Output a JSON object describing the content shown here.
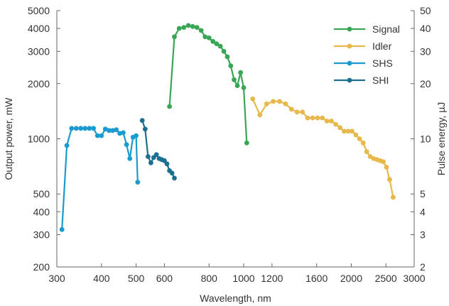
{
  "chart_data": {
    "type": "line",
    "xlabel": "Wavelength, nm",
    "ylabel": "Output power, mW",
    "y2label": "Pulse energy, µJ",
    "xscale": "log",
    "yscale": "log",
    "xlim": [
      300,
      3000
    ],
    "ylim": [
      200,
      5000
    ],
    "y2lim": [
      2,
      50
    ],
    "grid": false,
    "legend_position": "top-right",
    "xticks": [
      300,
      400,
      500,
      600,
      800,
      1000,
      1200,
      1600,
      2000,
      2500,
      3000
    ],
    "xtick_labels": [
      "300",
      "400",
      "500",
      "600",
      "800",
      "1000",
      "1200",
      "1600",
      "2000",
      "2500",
      "3000"
    ],
    "yticks": [
      200,
      300,
      400,
      500,
      1000,
      2000,
      3000,
      4000,
      5000
    ],
    "ytick_labels": [
      "200",
      "300",
      "400",
      "500",
      "1000",
      "2000",
      "3000",
      "4000",
      "5000"
    ],
    "y2ticks": [
      2,
      3,
      4,
      5,
      10,
      20,
      30,
      40,
      50
    ],
    "y2tick_labels": [
      "2",
      "3",
      "4",
      "5",
      "10",
      "20",
      "30",
      "40",
      "50"
    ],
    "series": [
      {
        "name": "Signal",
        "color": "#3aa655",
        "x": [
          620,
          640,
          660,
          680,
          700,
          720,
          740,
          760,
          780,
          800,
          820,
          840,
          860,
          880,
          900,
          920,
          940,
          960,
          980,
          1000,
          1020
        ],
        "y": [
          1500,
          3600,
          4000,
          4050,
          4150,
          4100,
          4050,
          3900,
          3600,
          3550,
          3400,
          3300,
          3200,
          3000,
          2800,
          2500,
          2100,
          1950,
          2300,
          1900,
          950
        ]
      },
      {
        "name": "Idler",
        "color": "#e8b84a",
        "x": [
          1060,
          1110,
          1160,
          1210,
          1260,
          1310,
          1360,
          1410,
          1460,
          1510,
          1560,
          1610,
          1660,
          1710,
          1760,
          1810,
          1860,
          1910,
          1960,
          2010,
          2060,
          2110,
          2160,
          2210,
          2260,
          2310,
          2360,
          2410,
          2460,
          2510,
          2560,
          2620
        ],
        "y": [
          1650,
          1350,
          1550,
          1600,
          1600,
          1550,
          1450,
          1400,
          1400,
          1300,
          1300,
          1300,
          1300,
          1250,
          1250,
          1200,
          1150,
          1100,
          1100,
          1100,
          1050,
          1000,
          950,
          850,
          800,
          780,
          770,
          760,
          750,
          700,
          600,
          480
        ]
      },
      {
        "name": "SHS",
        "color": "#1a9bd0",
        "x": [
          310,
          320,
          330,
          340,
          350,
          360,
          370,
          380,
          390,
          400,
          410,
          420,
          430,
          440,
          450,
          460,
          470,
          480,
          490,
          500,
          505
        ],
        "y": [
          320,
          920,
          1140,
          1140,
          1140,
          1140,
          1140,
          1140,
          1040,
          1040,
          1130,
          1110,
          1110,
          1120,
          1070,
          1080,
          930,
          780,
          1020,
          1040,
          580
        ]
      },
      {
        "name": "SHI",
        "color": "#1d6f91",
        "x": [
          520,
          530,
          540,
          550,
          560,
          570,
          580,
          590,
          600,
          610,
          620,
          630,
          640
        ],
        "y": [
          1260,
          1130,
          800,
          740,
          790,
          820,
          780,
          770,
          760,
          730,
          670,
          650,
          610
        ]
      }
    ]
  }
}
